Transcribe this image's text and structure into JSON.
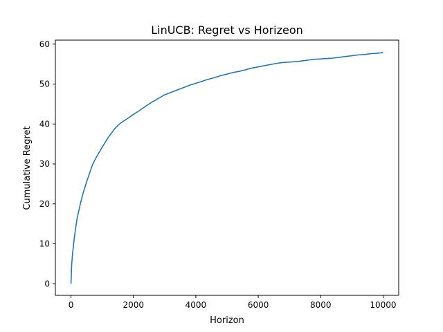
{
  "chart_data": {
    "type": "line",
    "title": "LinUCB: Regret vs Horizeon",
    "xlabel": "Horizon",
    "ylabel": "Cumulative Regret",
    "xlim": [
      -500,
      10500
    ],
    "ylim": [
      -2.9,
      61.0
    ],
    "xticks": [
      0,
      2000,
      4000,
      6000,
      8000,
      10000
    ],
    "xtick_labels": [
      "0",
      "2000",
      "4000",
      "6000",
      "8000",
      "10000"
    ],
    "yticks": [
      0,
      10,
      20,
      30,
      40,
      50,
      60
    ],
    "ytick_labels": [
      "0",
      "10",
      "20",
      "30",
      "40",
      "50",
      "60"
    ],
    "grid": false,
    "legend": "none",
    "line_color": "#1f77b4",
    "series": [
      {
        "x": [
          0,
          20,
          50,
          100,
          150,
          200,
          300,
          400,
          500,
          600,
          700,
          800,
          1000,
          1200,
          1400,
          1500,
          1600,
          1800,
          2000,
          2200,
          2400,
          2600,
          2800,
          3000,
          3200,
          3400,
          3600,
          3800,
          4000,
          4200,
          4400,
          4600,
          4800,
          5000,
          5200,
          5400,
          5600,
          5800,
          6000,
          6200,
          6400,
          6600,
          6800,
          7000,
          7200,
          7400,
          7600,
          7800,
          8000,
          8200,
          8400,
          8600,
          8800,
          9000,
          9200,
          9400,
          9600,
          9800,
          10000
        ],
        "y": [
          0.0,
          4.5,
          7.5,
          11.0,
          14.0,
          16.5,
          20.0,
          23.0,
          25.5,
          27.8,
          30.0,
          31.5,
          34.2,
          36.7,
          38.8,
          39.6,
          40.3,
          41.3,
          42.4,
          43.4,
          44.5,
          45.5,
          46.4,
          47.3,
          47.9,
          48.5,
          49.1,
          49.7,
          50.2,
          50.7,
          51.2,
          51.6,
          52.1,
          52.5,
          52.9,
          53.2,
          53.6,
          54.0,
          54.3,
          54.6,
          54.9,
          55.2,
          55.4,
          55.5,
          55.6,
          55.8,
          56.0,
          56.2,
          56.3,
          56.4,
          56.5,
          56.7,
          56.9,
          57.1,
          57.3,
          57.4,
          57.6,
          57.7,
          57.9
        ]
      }
    ]
  }
}
